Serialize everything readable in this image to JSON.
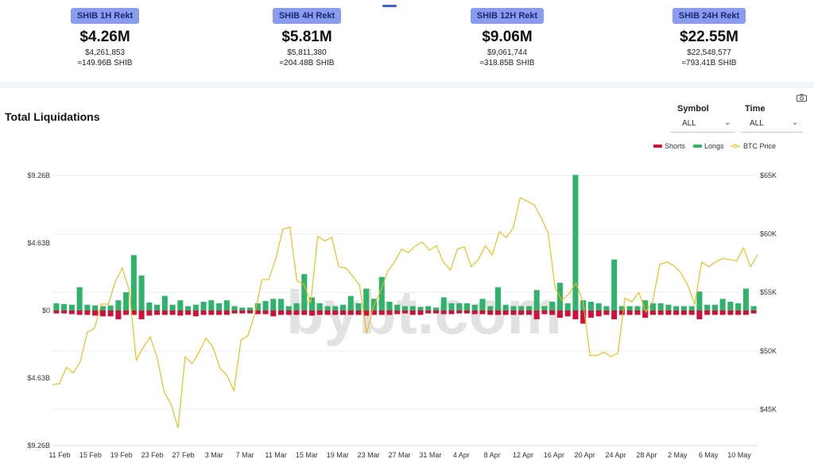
{
  "tabs_indicator": "active-tab",
  "cards": [
    {
      "badge": "SHIB 1H Rekt",
      "total": "$4.26M",
      "exact": "$4,261,853",
      "shib": "≈149.96B SHIB"
    },
    {
      "badge": "SHIB 4H Rekt",
      "total": "$5.81M",
      "exact": "$5,811,380",
      "shib": "≈204.48B SHIB"
    },
    {
      "badge": "SHIB 12H Rekt",
      "total": "$9.06M",
      "exact": "$9,061,744",
      "shib": "≈318.85B SHIB"
    },
    {
      "badge": "SHIB 24H Rekt",
      "total": "$22.55M",
      "exact": "$22,548,577",
      "shib": "≈793.41B SHIB"
    }
  ],
  "chart_header": {
    "title": "Total Liquidations",
    "symbol_label": "Symbol",
    "symbol_value": "ALL",
    "time_label": "Time",
    "time_value": "ALL"
  },
  "colors": {
    "shorts": "#d0103a",
    "longs": "#2fb36b",
    "btc": "#f0b90b",
    "badge": "#8a9cf0"
  },
  "watermark": "bybt.com",
  "chart_data": {
    "type": "bar",
    "legend_placement": "top-right",
    "legend": [
      "Shorts",
      "Longs",
      "BTC Price"
    ],
    "y_left": {
      "ticks": [
        "$9.26B",
        "$4.63B",
        "$0",
        "$4.63B",
        "$9.26B"
      ],
      "range": [
        -9.26,
        9.26
      ],
      "unit": "B USD"
    },
    "y_right": {
      "ticks": [
        "$65K",
        "$60K",
        "$55K",
        "$50K",
        "$45K"
      ],
      "range": [
        41.9,
        65
      ]
    },
    "x_labels": [
      "11 Feb",
      "15 Feb",
      "19 Feb",
      "23 Feb",
      "27 Feb",
      "3 Mar",
      "7 Mar",
      "11 Mar",
      "15 Mar",
      "19 Mar",
      "23 Mar",
      "27 Mar",
      "31 Mar",
      "4 Apr",
      "8 Apr",
      "12 Apr",
      "16 Apr",
      "20 Apr",
      "24 Apr",
      "28 Apr",
      "2 May",
      "6 May",
      "10 May"
    ],
    "longs": [
      0.5,
      0.45,
      0.4,
      1.6,
      0.4,
      0.35,
      0.3,
      0.35,
      0.7,
      1.25,
      3.8,
      2.4,
      0.55,
      0.4,
      1.0,
      0.4,
      0.7,
      0.3,
      0.4,
      0.6,
      0.7,
      0.5,
      0.7,
      0.3,
      0.2,
      0.2,
      0.5,
      0.65,
      0.8,
      0.8,
      0.3,
      0.5,
      2.5,
      0.9,
      0.5,
      0.3,
      0.3,
      0.4,
      1.0,
      0.5,
      1.5,
      0.8,
      2.3,
      0.6,
      0.4,
      0.3,
      0.3,
      0.25,
      0.3,
      0.2,
      0.9,
      0.5,
      0.5,
      0.5,
      0.4,
      0.8,
      0.3,
      1.6,
      0.4,
      0.3,
      0.3,
      0.3,
      1.4,
      0.3,
      0.6,
      1.9,
      0.5,
      9.3,
      0.7,
      0.6,
      0.5,
      0.3,
      3.5,
      0.3,
      0.3,
      0.3,
      0.7,
      0.5,
      0.5,
      0.4,
      0.3,
      0.3,
      0.3,
      1.3,
      0.4,
      0.4,
      0.8,
      0.6,
      0.5,
      1.5,
      0.3
    ],
    "shorts": [
      0.2,
      0.2,
      0.25,
      0.3,
      0.3,
      0.35,
      0.4,
      0.4,
      0.6,
      0.3,
      0.3,
      0.6,
      0.35,
      0.3,
      0.3,
      0.3,
      0.35,
      0.3,
      0.4,
      0.3,
      0.3,
      0.3,
      0.3,
      0.2,
      0.2,
      0.2,
      0.25,
      0.25,
      0.4,
      0.3,
      0.3,
      0.3,
      0.3,
      0.35,
      0.3,
      0.3,
      0.3,
      0.3,
      0.3,
      0.3,
      0.35,
      0.3,
      0.3,
      0.3,
      0.25,
      0.2,
      0.3,
      0.3,
      0.2,
      0.2,
      0.25,
      0.25,
      0.2,
      0.2,
      0.25,
      0.25,
      0.3,
      0.3,
      0.3,
      0.3,
      0.3,
      0.3,
      0.6,
      0.25,
      0.3,
      0.5,
      0.4,
      0.6,
      0.9,
      0.5,
      0.4,
      0.3,
      0.6,
      0.3,
      0.3,
      0.3,
      0.5,
      0.3,
      0.3,
      0.3,
      0.3,
      0.3,
      0.3,
      0.6,
      0.3,
      0.3,
      0.3,
      0.3,
      0.3,
      0.3,
      0.2
    ],
    "btc_price": [
      47.1,
      47.2,
      48.6,
      48.1,
      49.1,
      51.6,
      51.9,
      54.0,
      54.0,
      55.9,
      57.1,
      55.2,
      49.2,
      50.3,
      51.2,
      49.4,
      46.5,
      45.4,
      43.4,
      49.5,
      48.9,
      49.9,
      51.1,
      50.3,
      48.5,
      47.9,
      46.6,
      50.9,
      51.3,
      53.2,
      56.1,
      56.1,
      57.9,
      60.4,
      60.6,
      56.0,
      55.7,
      54.1,
      59.8,
      59.4,
      59.7,
      57.2,
      57.1,
      56.4,
      55.6,
      51.5,
      53.8,
      55.1,
      56.8,
      57.6,
      58.7,
      58.4,
      59.0,
      59.3,
      58.6,
      59.0,
      57.6,
      56.9,
      58.7,
      58.9,
      57.2,
      57.8,
      59.0,
      58.2,
      60.2,
      59.7,
      60.5,
      63.1,
      62.8,
      62.5,
      61.4,
      60.1,
      55.4,
      54.3,
      54.9,
      55.8,
      54.2,
      49.6,
      49.6,
      49.9,
      49.5,
      49.8,
      54.5,
      54.2,
      55.0,
      53.3,
      54.3,
      57.4,
      57.6,
      57.3,
      56.7,
      55.6,
      54.0,
      57.6,
      57.2,
      57.6,
      57.9,
      57.8,
      57.7,
      58.8,
      57.2,
      58.2
    ]
  }
}
